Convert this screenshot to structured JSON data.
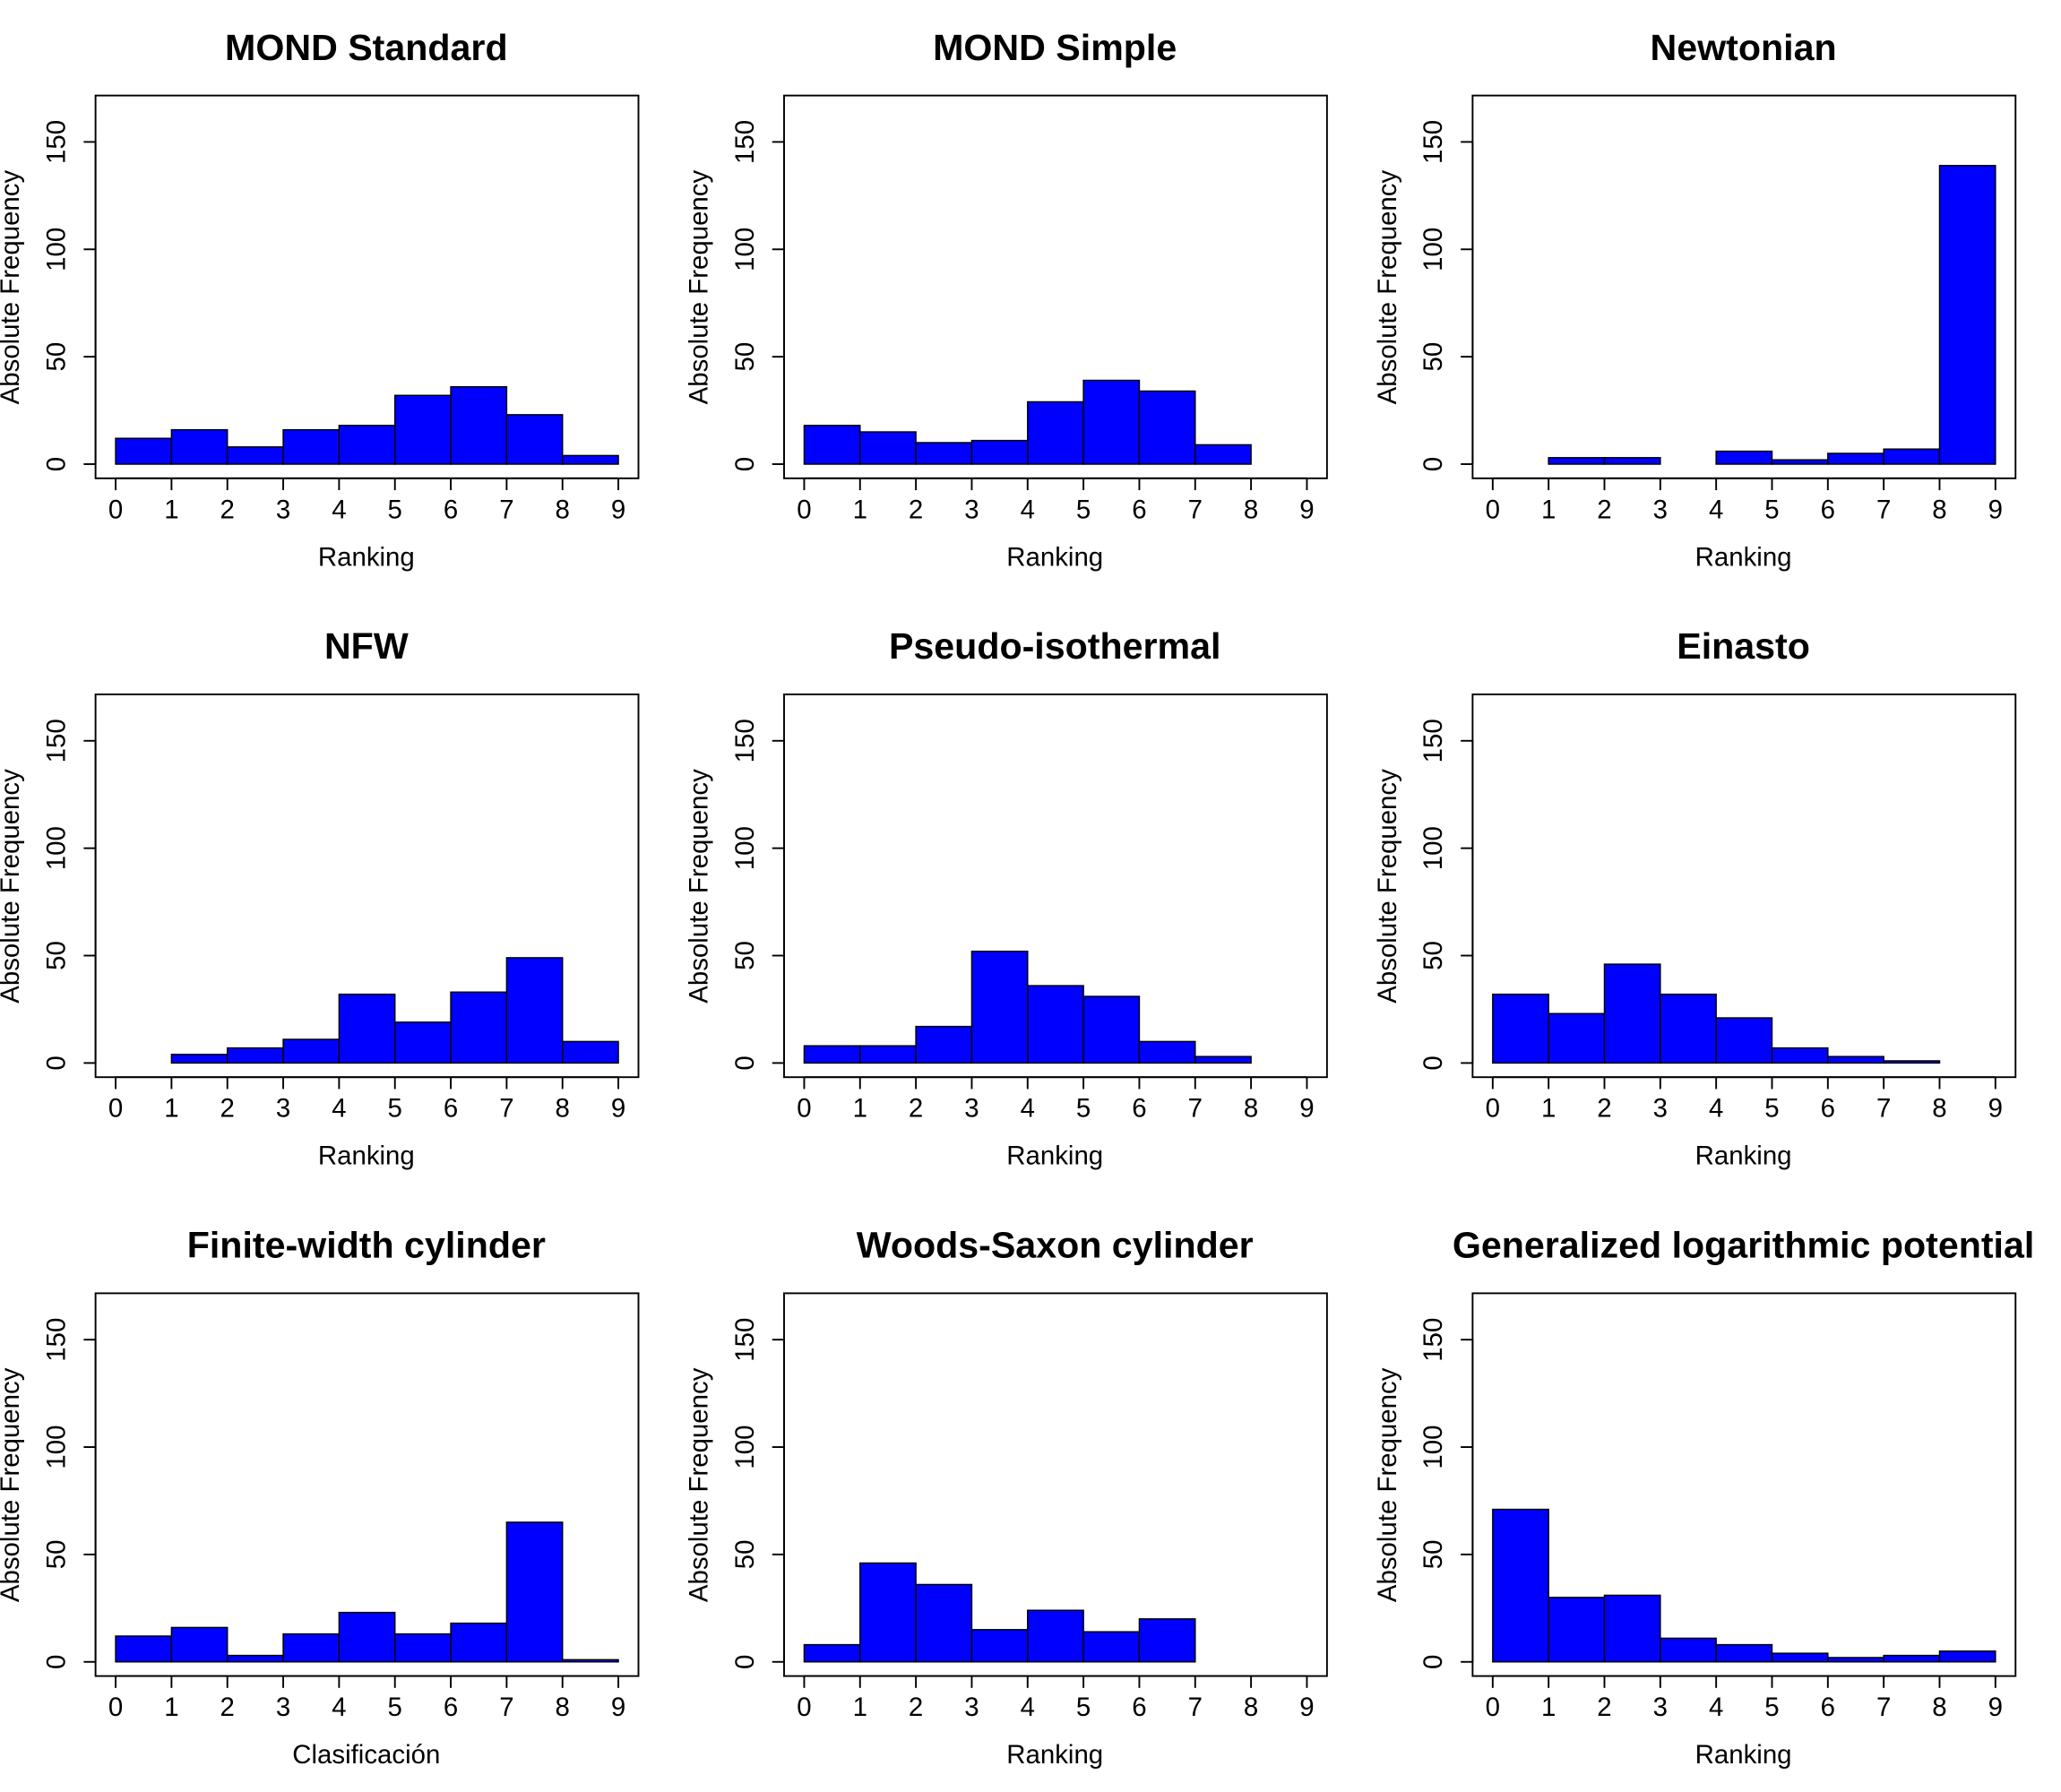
{
  "chart_data": [
    {
      "type": "histogram",
      "title": "MOND Standard",
      "xlabel": "Ranking",
      "ylabel": "Absolute Frequency",
      "color": "#0000ff",
      "bins": [
        0,
        1,
        2,
        3,
        4,
        5,
        6,
        7,
        8,
        9
      ],
      "values": [
        12,
        16,
        8,
        16,
        18,
        32,
        36,
        23,
        4
      ],
      "xlim": [
        0,
        9
      ],
      "ylim": [
        0,
        165
      ],
      "xticks": [
        0,
        1,
        2,
        3,
        4,
        5,
        6,
        7,
        8,
        9
      ],
      "yticks": [
        0,
        50,
        100,
        150
      ]
    },
    {
      "type": "histogram",
      "title": "MOND Simple",
      "xlabel": "Ranking",
      "ylabel": "Absolute Frequency",
      "color": "#0000ff",
      "bins": [
        0,
        1,
        2,
        3,
        4,
        5,
        6,
        7,
        8,
        9
      ],
      "values": [
        18,
        15,
        10,
        11,
        29,
        39,
        34,
        9,
        0
      ],
      "xlim": [
        0,
        9
      ],
      "ylim": [
        0,
        165
      ],
      "xticks": [
        0,
        1,
        2,
        3,
        4,
        5,
        6,
        7,
        8,
        9
      ],
      "yticks": [
        0,
        50,
        100,
        150
      ]
    },
    {
      "type": "histogram",
      "title": "Newtonian",
      "xlabel": "Ranking",
      "ylabel": "Absolute Frequency",
      "color": "#0000ff",
      "bins": [
        0,
        1,
        2,
        3,
        4,
        5,
        6,
        7,
        8,
        9
      ],
      "values": [
        0,
        3,
        3,
        0,
        6,
        2,
        5,
        7,
        139
      ],
      "xlim": [
        0,
        9
      ],
      "ylim": [
        0,
        165
      ],
      "xticks": [
        0,
        1,
        2,
        3,
        4,
        5,
        6,
        7,
        8,
        9
      ],
      "yticks": [
        0,
        50,
        100,
        150
      ]
    },
    {
      "type": "histogram",
      "title": "NFW",
      "xlabel": "Ranking",
      "ylabel": "Absolute Frequency",
      "color": "#0000ff",
      "bins": [
        0,
        1,
        2,
        3,
        4,
        5,
        6,
        7,
        8,
        9
      ],
      "values": [
        0,
        4,
        7,
        11,
        32,
        19,
        33,
        49,
        10
      ],
      "xlim": [
        0,
        9
      ],
      "ylim": [
        0,
        165
      ],
      "xticks": [
        0,
        1,
        2,
        3,
        4,
        5,
        6,
        7,
        8,
        9
      ],
      "yticks": [
        0,
        50,
        100,
        150
      ]
    },
    {
      "type": "histogram",
      "title": "Pseudo-isothermal",
      "xlabel": "Ranking",
      "ylabel": "Absolute Frequency",
      "color": "#0000ff",
      "bins": [
        0,
        1,
        2,
        3,
        4,
        5,
        6,
        7,
        8,
        9
      ],
      "values": [
        8,
        8,
        17,
        52,
        36,
        31,
        10,
        3,
        0
      ],
      "xlim": [
        0,
        9
      ],
      "ylim": [
        0,
        165
      ],
      "xticks": [
        0,
        1,
        2,
        3,
        4,
        5,
        6,
        7,
        8,
        9
      ],
      "yticks": [
        0,
        50,
        100,
        150
      ]
    },
    {
      "type": "histogram",
      "title": "Einasto",
      "xlabel": "Ranking",
      "ylabel": "Absolute Frequency",
      "color": "#0000ff",
      "bins": [
        0,
        1,
        2,
        3,
        4,
        5,
        6,
        7,
        8,
        9
      ],
      "values": [
        32,
        23,
        46,
        32,
        21,
        7,
        3,
        1,
        0
      ],
      "xlim": [
        0,
        9
      ],
      "ylim": [
        0,
        165
      ],
      "xticks": [
        0,
        1,
        2,
        3,
        4,
        5,
        6,
        7,
        8,
        9
      ],
      "yticks": [
        0,
        50,
        100,
        150
      ]
    },
    {
      "type": "histogram",
      "title": "Finite-width cylinder",
      "xlabel": "Clasificación",
      "ylabel": "Absolute Frequency",
      "color": "#0000ff",
      "bins": [
        0,
        1,
        2,
        3,
        4,
        5,
        6,
        7,
        8,
        9
      ],
      "values": [
        12,
        16,
        3,
        13,
        23,
        13,
        18,
        65,
        1
      ],
      "xlim": [
        0,
        9
      ],
      "ylim": [
        0,
        165
      ],
      "xticks": [
        0,
        1,
        2,
        3,
        4,
        5,
        6,
        7,
        8,
        9
      ],
      "yticks": [
        0,
        50,
        100,
        150
      ]
    },
    {
      "type": "histogram",
      "title": "Woods-Saxon cylinder",
      "xlabel": "Ranking",
      "ylabel": "Absolute Frequency",
      "color": "#0000ff",
      "bins": [
        0,
        1,
        2,
        3,
        4,
        5,
        6,
        7,
        8,
        9
      ],
      "values": [
        8,
        46,
        36,
        15,
        24,
        14,
        20,
        0,
        0
      ],
      "xlim": [
        0,
        9
      ],
      "ylim": [
        0,
        165
      ],
      "xticks": [
        0,
        1,
        2,
        3,
        4,
        5,
        6,
        7,
        8,
        9
      ],
      "yticks": [
        0,
        50,
        100,
        150
      ]
    },
    {
      "type": "histogram",
      "title": "Generalized logarithmic potential",
      "xlabel": "Ranking",
      "ylabel": "Absolute Frequency",
      "color": "#0000ff",
      "bins": [
        0,
        1,
        2,
        3,
        4,
        5,
        6,
        7,
        8,
        9
      ],
      "values": [
        71,
        30,
        31,
        11,
        8,
        4,
        2,
        3,
        5
      ],
      "xlim": [
        0,
        9
      ],
      "ylim": [
        0,
        165
      ],
      "xticks": [
        0,
        1,
        2,
        3,
        4,
        5,
        6,
        7,
        8,
        9
      ],
      "yticks": [
        0,
        50,
        100,
        150
      ]
    }
  ]
}
